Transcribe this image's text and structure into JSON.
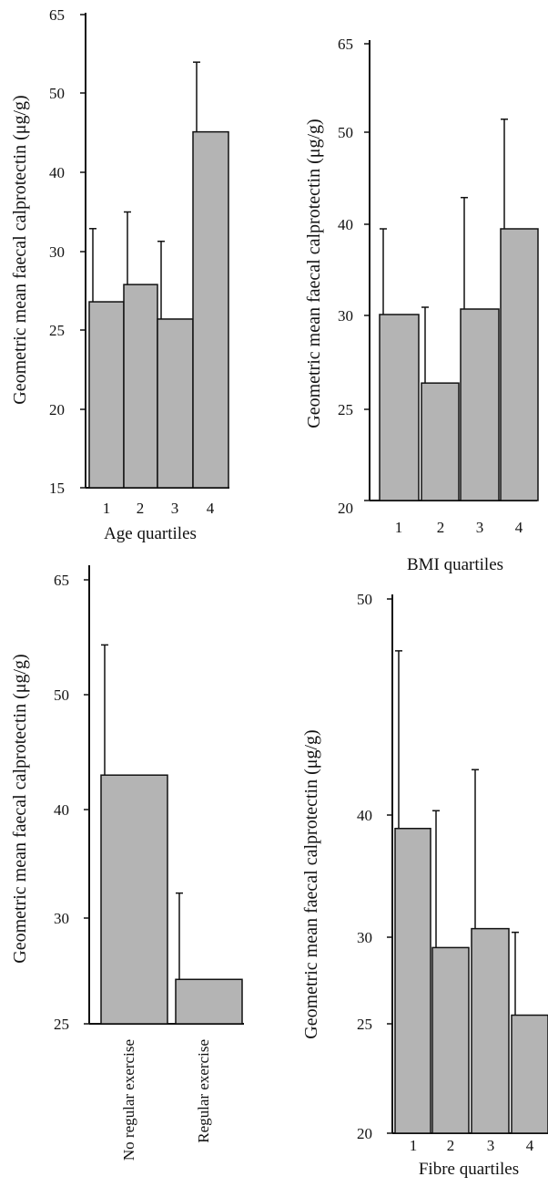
{
  "chart_data": [
    {
      "type": "bar",
      "categories": [
        "1",
        "2",
        "3",
        "4"
      ],
      "values": [
        26.8,
        27.9,
        25.7,
        45.1
      ],
      "error_upper": [
        32.9,
        35.0,
        31.3,
        55.9
      ],
      "yticks": [
        "15",
        "20",
        "25",
        "30",
        "40",
        "50",
        "65"
      ],
      "ylim": [
        15,
        65
      ],
      "xlabel": "Age quartiles",
      "ylabel": "Geometric mean  faecal calprotectin (μg/g)",
      "colors": {
        "bar": "#b4b4b4",
        "stroke": "#111111"
      }
    },
    {
      "type": "bar",
      "categories": [
        "1",
        "2",
        "3",
        "4"
      ],
      "values": [
        30.1,
        26.4,
        30.7,
        39.5
      ],
      "error_upper": [
        39.5,
        30.9,
        42.9,
        52.2
      ],
      "yticks": [
        "20",
        "25",
        "30",
        "40",
        "50",
        "65"
      ],
      "ylim": [
        20,
        65
      ],
      "xlabel": "BMI quartiles",
      "ylabel": "Geometric mean faecal calprotectin (μg/g)",
      "colors": {
        "bar": "#b4b4b4",
        "stroke": "#111111"
      }
    },
    {
      "type": "bar",
      "categories": [
        "No regular exercise",
        "Regular exercise"
      ],
      "values": [
        43.0,
        27.1
      ],
      "error_upper": [
        56.5,
        32.3
      ],
      "yticks": [
        "25",
        "30",
        "40",
        "50",
        "65"
      ],
      "ylim": [
        25,
        65
      ],
      "xlabel": "",
      "ylabel": "Geometric mean faecal calprotectin (μg/g)",
      "colors": {
        "bar": "#b4b4b4",
        "stroke": "#111111"
      }
    },
    {
      "type": "bar",
      "categories": [
        "1",
        "2",
        "3",
        "4"
      ],
      "values": [
        38.9,
        29.4,
        30.7,
        25.5
      ],
      "error_upper": [
        47.6,
        40.2,
        42.1,
        30.4
      ],
      "yticks": [
        "20",
        "25",
        "30",
        "40",
        "50"
      ],
      "ylim": [
        20,
        50
      ],
      "xlabel": "Fibre quartiles",
      "ylabel": "Geometric mean faecal calprotectin (μg/g)",
      "colors": {
        "bar": "#b4b4b4",
        "stroke": "#111111"
      }
    }
  ]
}
